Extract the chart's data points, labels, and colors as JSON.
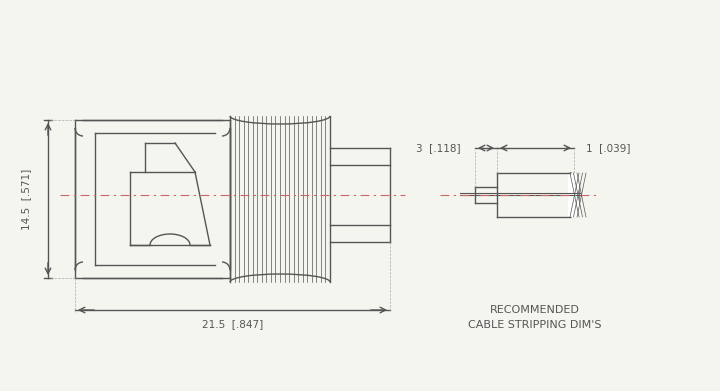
{
  "bg_color": "#f5f5f0",
  "line_color": "#555555",
  "dash_color": "#cc6666",
  "line_width": 1.0,
  "title_text": "RECOMMENDED\nCABLE STRIPPING DIM'S",
  "dim_14_5": "14.5  [.571]",
  "dim_21_5": "21.5  [.847]",
  "dim_3": "3  [.118]",
  "dim_1": "1  [.039]"
}
